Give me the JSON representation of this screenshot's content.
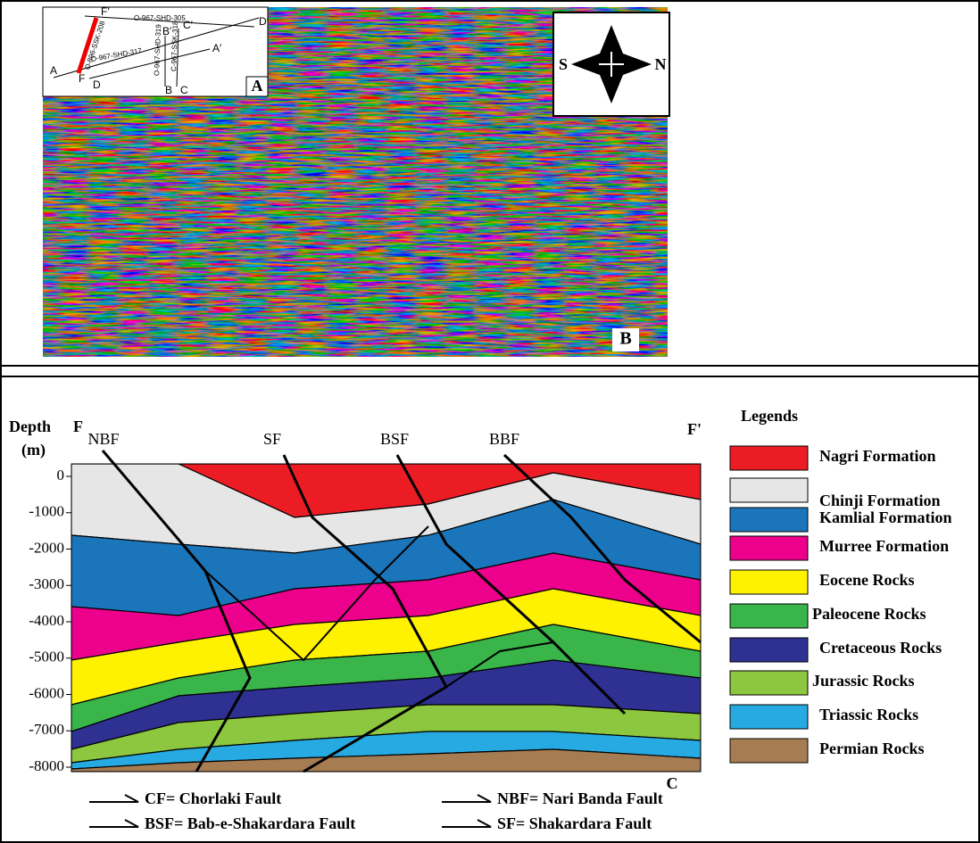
{
  "panel_a": {
    "label": "A",
    "points": [
      "F′",
      "D′",
      "B′",
      "C′",
      "A′",
      "A",
      "F",
      "D",
      "B",
      "C"
    ],
    "lines": [
      "O-967-SHD-305",
      "O-967-SHD-317",
      "O-896-SSK-208",
      "O-967-SHD-319",
      "C-967-SSK-318"
    ]
  },
  "compass": {
    "south": "S",
    "north": "N"
  },
  "panel_b": {
    "label": "B"
  },
  "panel_c": {
    "label": "C",
    "depth_title": "Depth",
    "depth_unit": "(m)",
    "start": "F",
    "end": "F'",
    "depth_ticks": [
      0,
      -1000,
      -2000,
      -3000,
      -4000,
      -5000,
      -6000,
      -7000,
      -8000
    ],
    "faults": [
      "NBF",
      "SF",
      "BSF",
      "BBF"
    ]
  },
  "legend": {
    "title": "Legends",
    "items": [
      {
        "name": "Nagri Formation",
        "color": "#ec1c24"
      },
      {
        "name": "Chinji Formation",
        "color": "#e6e6e6"
      },
      {
        "name": "Kamlial Formation",
        "color": "#1b75bb"
      },
      {
        "name": "Murree Formation",
        "color": "#ec008c"
      },
      {
        "name": "Eocene Rocks",
        "color": "#fff200"
      },
      {
        "name": "Paleocene Rocks",
        "color": "#39b54a"
      },
      {
        "name": "Cretaceous Rocks",
        "color": "#2e3192"
      },
      {
        "name": "Jurassic Rocks",
        "color": "#8dc63f"
      },
      {
        "name": "Triassic Rocks",
        "color": "#27aae1"
      },
      {
        "name": "Permian Rocks",
        "color": "#a67c52"
      }
    ]
  },
  "fault_key": [
    "CF= Chorlaki Fault",
    "NBF= Nari Banda Fault",
    "BSF= Bab-e-Shakardara Fault",
    "SF= Shakardara Fault"
  ]
}
